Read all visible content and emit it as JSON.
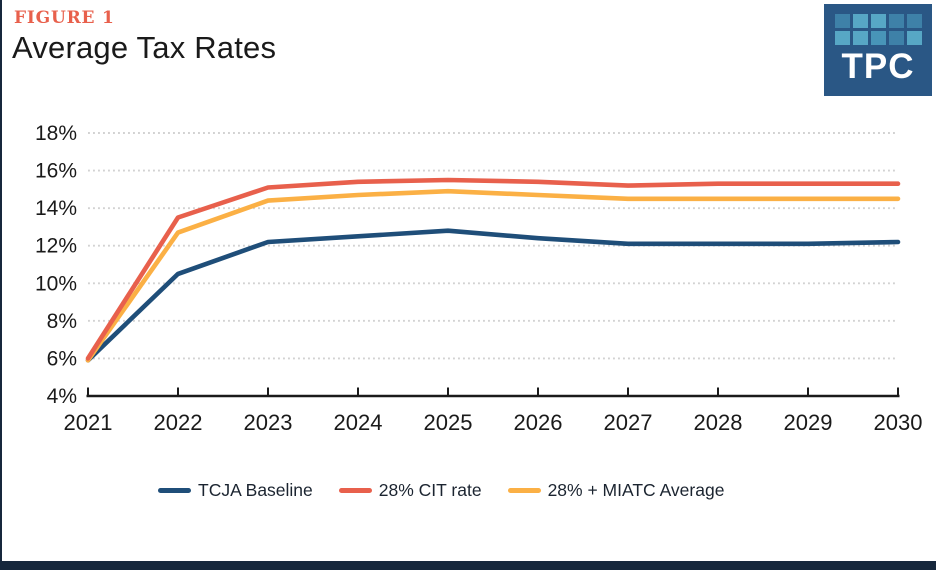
{
  "header": {
    "figure_label": "FIGURE 1",
    "figure_label_color": "#e8604c",
    "title": "Average Tax Rates",
    "logo": {
      "text": "TPC",
      "bg_color": "#2a5785",
      "text_color": "#ffffff",
      "squares": [
        "#3e81a8",
        "#57a7c5",
        "#57a7c5",
        "#3e81a8",
        "#3e81a8",
        "#57a7c5",
        "#57a7c5",
        "#4895b8",
        "#3e81a8",
        "#57a7c5"
      ]
    }
  },
  "chart_data": {
    "type": "line",
    "title": "Average Tax Rates",
    "x": [
      2021,
      2022,
      2023,
      2024,
      2025,
      2026,
      2027,
      2028,
      2029,
      2030
    ],
    "xlabel": "",
    "ylabel": "",
    "ylim": [
      4,
      18
    ],
    "ytick_step": 2,
    "ytick_suffix": "%",
    "grid": "horizontal-dotted",
    "gridline_color": "#d2d2d2",
    "axis_color": "#1a1a1a",
    "legend_position": "bottom",
    "series": [
      {
        "name": "TCJA Baseline",
        "color": "#1f4e79",
        "values": [
          5.9,
          10.5,
          12.2,
          12.5,
          12.8,
          12.4,
          12.1,
          12.1,
          12.1,
          12.2
        ]
      },
      {
        "name": "28% CIT rate",
        "color": "#e8604c",
        "values": [
          6.0,
          13.5,
          15.1,
          15.4,
          15.5,
          15.4,
          15.2,
          15.3,
          15.3,
          15.3
        ]
      },
      {
        "name": "28% + MIATC Average",
        "color": "#fbb045",
        "values": [
          5.9,
          12.7,
          14.4,
          14.7,
          14.9,
          14.7,
          14.5,
          14.5,
          14.5,
          14.5
        ]
      }
    ]
  },
  "footer": {
    "bar_color": "#16273c"
  }
}
